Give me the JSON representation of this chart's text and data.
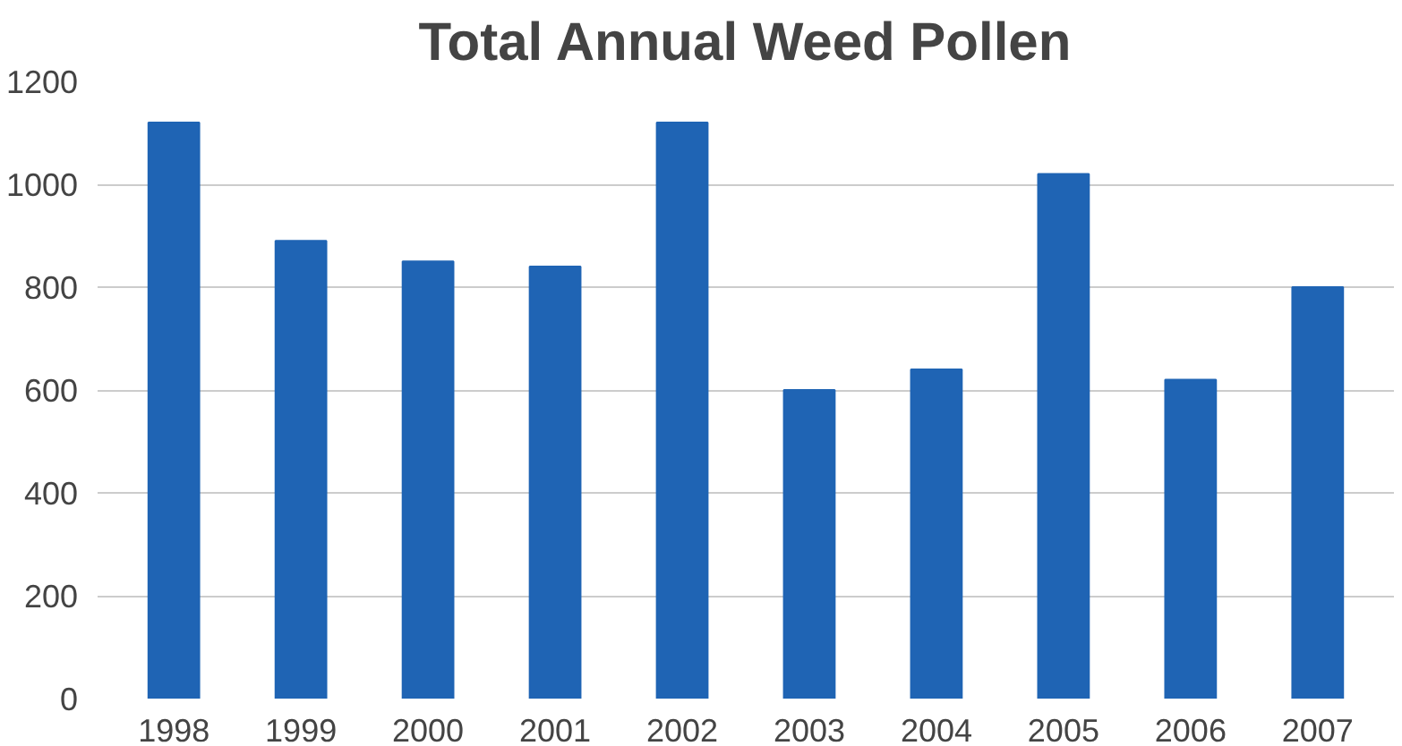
{
  "chart_data": {
    "type": "bar",
    "title": "Total Annual Weed Pollen",
    "categories": [
      "1998",
      "1999",
      "2000",
      "2001",
      "2002",
      "2003",
      "2004",
      "2005",
      "2006",
      "2007"
    ],
    "values": [
      1120,
      890,
      850,
      840,
      1120,
      600,
      640,
      1020,
      620,
      800
    ],
    "color": "#1f64b4",
    "ylim": [
      0,
      1200
    ],
    "yticks": [
      0,
      200,
      400,
      600,
      800,
      1000,
      1200
    ],
    "grid": "y"
  }
}
